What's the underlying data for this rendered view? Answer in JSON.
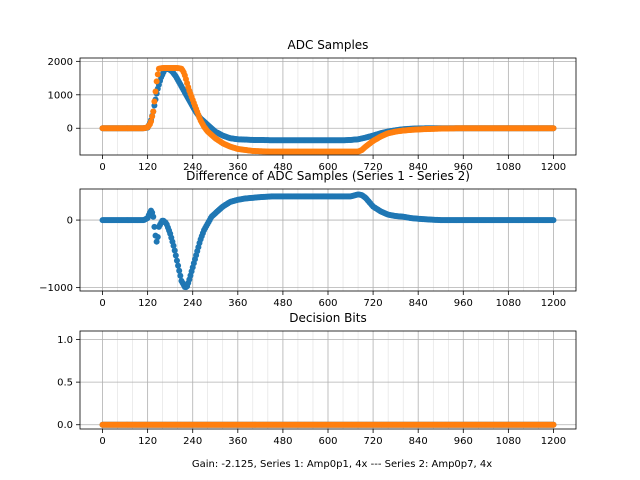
{
  "figure": {
    "xlabel": "Gain: -2.125, Series 1: Amp0p1, 4x --- Series 2: Amp0p7, 4x",
    "colors": {
      "series1": "#1f77b4",
      "series2": "#ff7f0e",
      "grid": "#b0b0b0"
    }
  },
  "chart_data": [
    {
      "type": "scatter",
      "title": "ADC Samples",
      "xlim": [
        -60,
        1260
      ],
      "ylim": [
        -800,
        2100
      ],
      "xticks": [
        0,
        120,
        240,
        360,
        480,
        600,
        720,
        840,
        960,
        1080,
        1200
      ],
      "xtick_labels": [
        "0",
        "120",
        "240",
        "360",
        "480",
        "600",
        "720",
        "840",
        "960",
        "1080",
        "1200"
      ],
      "yticks": [
        0,
        1000,
        2000
      ],
      "ytick_labels": [
        "0",
        "1000",
        "2000"
      ],
      "grid": true,
      "series": [
        {
          "name": "Series 1",
          "color": "#1f77b4",
          "x": [
            0,
            110,
            120,
            128,
            135,
            145,
            155,
            165,
            175,
            185,
            195,
            205,
            215,
            225,
            235,
            245,
            260,
            280,
            300,
            320,
            340,
            360,
            380,
            400,
            420,
            450,
            500,
            550,
            600,
            640,
            660,
            680,
            700,
            720,
            740,
            760,
            780,
            800,
            820,
            840,
            870,
            900,
            950,
            1000,
            1100,
            1200
          ],
          "y": [
            0,
            0,
            20,
            200,
            500,
            1100,
            1500,
            1750,
            1780,
            1700,
            1550,
            1350,
            1150,
            950,
            750,
            550,
            300,
            100,
            -100,
            -220,
            -300,
            -330,
            -340,
            -350,
            -350,
            -360,
            -360,
            -360,
            -360,
            -360,
            -350,
            -330,
            -280,
            -220,
            -150,
            -100,
            -60,
            -30,
            -15,
            -5,
            0,
            0,
            0,
            0,
            0,
            0
          ]
        },
        {
          "name": "Series 2",
          "color": "#ff7f0e",
          "x": [
            0,
            110,
            120,
            128,
            135,
            140,
            145,
            150,
            160,
            170,
            180,
            190,
            200,
            210,
            215,
            220,
            225,
            230,
            240,
            250,
            260,
            270,
            280,
            300,
            320,
            340,
            360,
            380,
            400,
            450,
            500,
            550,
            600,
            650,
            680,
            690,
            700,
            720,
            740,
            760,
            780,
            800,
            820,
            850,
            900,
            950,
            1000,
            1100,
            1200
          ],
          "y": [
            0,
            0,
            30,
            150,
            500,
            1000,
            1500,
            1780,
            1800,
            1800,
            1800,
            1800,
            1800,
            1780,
            1700,
            1550,
            1350,
            1150,
            850,
            550,
            250,
            50,
            -100,
            -300,
            -450,
            -550,
            -620,
            -650,
            -680,
            -700,
            -700,
            -700,
            -700,
            -700,
            -700,
            -650,
            -550,
            -380,
            -250,
            -150,
            -100,
            -70,
            -50,
            -30,
            -10,
            0,
            0,
            0,
            0
          ]
        }
      ]
    },
    {
      "type": "scatter",
      "title": "Difference of ADC Samples (Series 1 - Series 2)",
      "xlim": [
        -60,
        1260
      ],
      "ylim": [
        -1050,
        460
      ],
      "xticks": [
        0,
        120,
        240,
        360,
        480,
        600,
        720,
        840,
        960,
        1080,
        1200
      ],
      "xtick_labels": [
        "0",
        "120",
        "240",
        "360",
        "480",
        "600",
        "720",
        "840",
        "960",
        "1080",
        "1200"
      ],
      "yticks": [
        0,
        -1000
      ],
      "ytick_labels": [
        "0",
        "−1000"
      ],
      "grid": true,
      "series": [
        {
          "name": "Difference",
          "color": "#1f77b4",
          "x": [
            0,
            110,
            120,
            125,
            130,
            135,
            140,
            145,
            150,
            160,
            170,
            180,
            190,
            200,
            210,
            220,
            225,
            230,
            240,
            250,
            260,
            270,
            280,
            290,
            300,
            320,
            340,
            360,
            380,
            400,
            420,
            450,
            500,
            550,
            600,
            640,
            660,
            680,
            690,
            700,
            720,
            740,
            760,
            780,
            800,
            820,
            850,
            880,
            900,
            950,
            1000,
            1100,
            1200
          ],
          "y": [
            0,
            0,
            30,
            100,
            150,
            50,
            -200,
            -350,
            -100,
            0,
            -50,
            -200,
            -400,
            -650,
            -900,
            -1000,
            -980,
            -900,
            -700,
            -500,
            -300,
            -150,
            -50,
            50,
            100,
            200,
            270,
            300,
            320,
            330,
            340,
            350,
            350,
            350,
            350,
            350,
            350,
            380,
            370,
            330,
            200,
            130,
            80,
            60,
            50,
            30,
            15,
            5,
            0,
            0,
            0,
            0,
            0
          ]
        }
      ]
    },
    {
      "type": "scatter",
      "title": "Decision Bits",
      "xlim": [
        -60,
        1260
      ],
      "ylim": [
        -0.05,
        1.1
      ],
      "xticks": [
        0,
        120,
        240,
        360,
        480,
        600,
        720,
        840,
        960,
        1080,
        1200
      ],
      "xtick_labels": [
        "0",
        "120",
        "240",
        "360",
        "480",
        "600",
        "720",
        "840",
        "960",
        "1080",
        "1200"
      ],
      "yticks": [
        0.0,
        0.5,
        1.0
      ],
      "ytick_labels": [
        "0.0",
        "0.5",
        "1.0"
      ],
      "grid": true,
      "series": [
        {
          "name": "Series 1",
          "color": "#1f77b4",
          "x": [
            0,
            1200
          ],
          "y": [
            0,
            0
          ]
        },
        {
          "name": "Series 2",
          "color": "#ff7f0e",
          "x": [
            0,
            1200
          ],
          "y": [
            0,
            0
          ]
        }
      ]
    }
  ]
}
